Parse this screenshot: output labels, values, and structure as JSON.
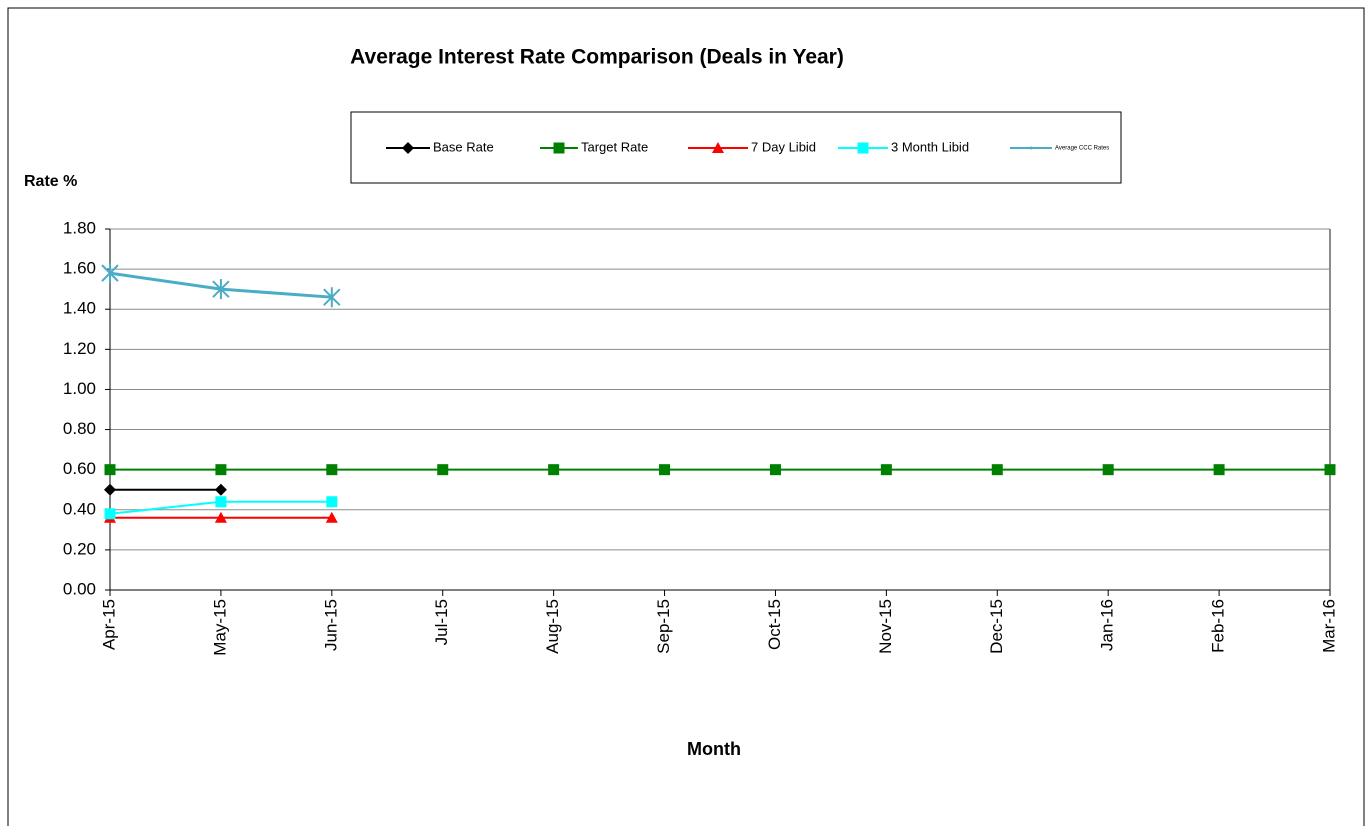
{
  "chart_data": {
    "type": "line",
    "title": "Average Interest Rate Comparison (Deals in Year)",
    "x_label": "Month",
    "y_label": "Rate %",
    "categories": [
      "Apr-15",
      "May-15",
      "Jun-15",
      "Jul-15",
      "Aug-15",
      "Sep-15",
      "Oct-15",
      "Nov-15",
      "Dec-15",
      "Jan-16",
      "Feb-16",
      "Mar-16"
    ],
    "series": [
      {
        "name": "Base Rate",
        "color": "#000000",
        "marker": "diamond",
        "values": [
          0.5,
          0.5,
          null,
          null,
          null,
          null,
          null,
          null,
          null,
          null,
          null,
          null
        ]
      },
      {
        "name": "Target Rate",
        "color": "#008000",
        "marker": "square",
        "values": [
          0.6,
          0.6,
          0.6,
          0.6,
          0.6,
          0.6,
          0.6,
          0.6,
          0.6,
          0.6,
          0.6,
          0.6
        ]
      },
      {
        "name": "7 Day Libid",
        "color": "#ff0000",
        "marker": "triangle",
        "values": [
          0.36,
          0.36,
          0.36,
          null,
          null,
          null,
          null,
          null,
          null,
          null,
          null,
          null
        ]
      },
      {
        "name": "3 Month Libid",
        "color": "#00ffff",
        "marker": "square",
        "values": [
          0.38,
          0.44,
          0.44,
          null,
          null,
          null,
          null,
          null,
          null,
          null,
          null,
          null
        ]
      },
      {
        "name": "Average CCC Rates",
        "color": "#4bacc6",
        "marker": "asterisk",
        "values": [
          1.58,
          1.5,
          1.46,
          null,
          null,
          null,
          null,
          null,
          null,
          null,
          null,
          null
        ]
      }
    ],
    "ylim": [
      0,
      1.8
    ],
    "yticks": [
      {
        "value": 0,
        "label": "0.00"
      },
      {
        "value": 0.2,
        "label": "0.20"
      },
      {
        "value": 0.4,
        "label": "0.40"
      },
      {
        "value": 0.6,
        "label": "0.60"
      },
      {
        "value": 0.8,
        "label": "0.80"
      },
      {
        "value": 1,
        "label": "1.00"
      },
      {
        "value": 1.2,
        "label": "1.20"
      },
      {
        "value": 1.4,
        "label": "1.40"
      },
      {
        "value": 1.6,
        "label": "1.60"
      },
      {
        "value": 1.8,
        "label": "1.80"
      }
    ],
    "grid": true,
    "legend": "top"
  }
}
